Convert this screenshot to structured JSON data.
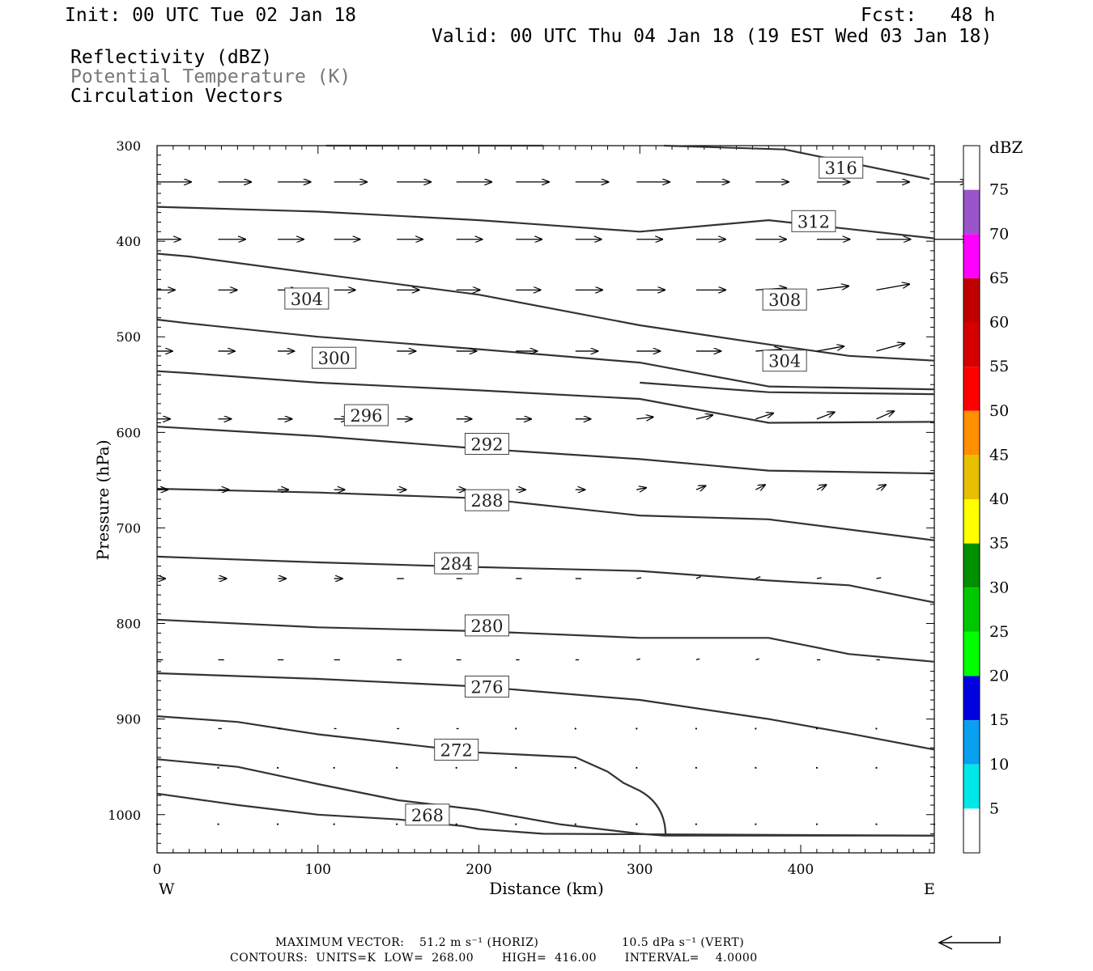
{
  "header": {
    "init": "Init: 00 UTC Tue 02 Jan 18",
    "fcst": "Fcst:   48 h",
    "valid": "Valid: 00 UTC Thu 04 Jan 18 (19 EST Wed 03 Jan 18)",
    "field1": "Reflectivity (dBZ)",
    "field2": "Potential Temperature (K)",
    "field3": "Circulation Vectors"
  },
  "footer": {
    "max_vector_label": "MAXIMUM VECTOR:",
    "horiz": "51.2 m s⁻¹ (HORIZ)",
    "vert": "10.5 dPa s⁻¹ (VERT)",
    "contours": "CONTOURS:  UNITS=K  LOW=  268.00       HIGH=  416.00       INTERVAL=    4.0000"
  },
  "colorbar": {
    "title": "dBZ",
    "labels": [
      "5",
      "10",
      "15",
      "20",
      "25",
      "30",
      "35",
      "40",
      "45",
      "50",
      "55",
      "60",
      "65",
      "70",
      "75"
    ],
    "colors": [
      "#ffffff",
      "#00e8e8",
      "#0aa0f0",
      "#0000e0",
      "#00ff00",
      "#00c800",
      "#009000",
      "#ffff00",
      "#e6bf00",
      "#ff9000",
      "#ff0000",
      "#d60000",
      "#c00000",
      "#ff00ff",
      "#9955c9",
      "#ffffff"
    ]
  },
  "chart_data": {
    "type": "contour",
    "xlabel": "Distance (km)",
    "ylabel": "Pressure (hPa)",
    "x_ticks": [
      "0",
      "100",
      "200",
      "300",
      "400"
    ],
    "y_ticks": [
      "300",
      "400",
      "500",
      "600",
      "700",
      "800",
      "900",
      "1000"
    ],
    "x_end_labels": {
      "left": "W",
      "right": "E"
    },
    "xlim": [
      0,
      483
    ],
    "ylim": [
      1040,
      300
    ],
    "contours": [
      {
        "level": "316",
        "points": [
          [
            105,
            300
          ],
          [
            240,
            300
          ]
        ],
        "label_at": [
          425,
          323
        ]
      },
      {
        "level": "316b",
        "points": [
          [
            315,
            300
          ],
          [
            390,
            304
          ],
          [
            480,
            335
          ]
        ]
      },
      {
        "level": "312",
        "points": [
          [
            0,
            364
          ],
          [
            100,
            369
          ],
          [
            200,
            378
          ],
          [
            300,
            390
          ],
          [
            380,
            378
          ],
          [
            483,
            397
          ]
        ],
        "label_at": [
          408,
          379
        ]
      },
      {
        "level": "308",
        "points": [
          [
            0,
            413
          ],
          [
            20,
            416
          ],
          [
            100,
            434
          ],
          [
            200,
            456
          ],
          [
            300,
            488
          ],
          [
            380,
            508
          ],
          [
            430,
            520
          ],
          [
            483,
            525
          ]
        ],
        "label_at": [
          390,
          461
        ]
      },
      {
        "level": "304",
        "points": [
          [
            0,
            482
          ],
          [
            20,
            486
          ],
          [
            100,
            500
          ],
          [
            200,
            513
          ],
          [
            300,
            527
          ],
          [
            380,
            552
          ],
          [
            483,
            555
          ]
        ],
        "label_at": [
          93,
          460
        ]
      },
      {
        "level": "304b",
        "points": [
          [
            300,
            548
          ],
          [
            380,
            558
          ],
          [
            483,
            560
          ]
        ],
        "label_at": [
          390,
          525
        ]
      },
      {
        "level": "300",
        "points": [
          [
            0,
            536
          ],
          [
            20,
            538
          ],
          [
            100,
            548
          ],
          [
            200,
            556
          ],
          [
            300,
            565
          ],
          [
            380,
            590
          ],
          [
            483,
            589
          ]
        ],
        "label_at": [
          110,
          522
        ]
      },
      {
        "level": "296",
        "points": [
          [
            0,
            594
          ],
          [
            100,
            604
          ],
          [
            200,
            617
          ],
          [
            300,
            628
          ],
          [
            380,
            640
          ],
          [
            483,
            643
          ]
        ],
        "label_at": [
          130,
          582
        ]
      },
      {
        "level": "292",
        "points": [
          [
            0,
            659
          ],
          [
            100,
            663
          ],
          [
            200,
            669
          ],
          [
            300,
            687
          ],
          [
            380,
            691
          ],
          [
            483,
            713
          ]
        ],
        "label_at": [
          205,
          612
        ]
      },
      {
        "level": "288",
        "points": [
          [
            0,
            730
          ],
          [
            100,
            736
          ],
          [
            200,
            741
          ],
          [
            300,
            745
          ],
          [
            380,
            755
          ],
          [
            430,
            760
          ],
          [
            483,
            778
          ]
        ],
        "label_at": [
          205,
          671
        ]
      },
      {
        "level": "284",
        "points": [
          [
            0,
            796
          ],
          [
            100,
            804
          ],
          [
            200,
            808
          ],
          [
            300,
            815
          ],
          [
            380,
            815
          ],
          [
            430,
            832
          ],
          [
            483,
            840
          ]
        ],
        "label_at": [
          186,
          737
        ]
      },
      {
        "level": "280",
        "points": [
          [
            0,
            852
          ],
          [
            100,
            858
          ],
          [
            200,
            866
          ],
          [
            300,
            880
          ],
          [
            380,
            900
          ],
          [
            430,
            915
          ],
          [
            483,
            932
          ]
        ],
        "label_at": [
          205,
          802
        ]
      },
      {
        "level": "276",
        "points": [
          [
            0,
            897
          ],
          [
            50,
            903
          ],
          [
            100,
            916
          ],
          [
            200,
            935
          ],
          [
            260,
            940
          ],
          [
            280,
            955
          ],
          [
            290,
            967
          ],
          [
            300,
            975
          ]
        ],
        "label_at": [
          205,
          866
        ]
      },
      {
        "level": "272",
        "points": [
          [
            0,
            942
          ],
          [
            50,
            950
          ],
          [
            100,
            968
          ],
          [
            150,
            985
          ],
          [
            200,
            995
          ],
          [
            250,
            1010
          ],
          [
            300,
            1020
          ],
          [
            315,
            1022
          ],
          [
            483,
            1022
          ]
        ],
        "label_at": [
          186,
          932
        ]
      },
      {
        "level": "268",
        "points": [
          [
            0,
            978
          ],
          [
            50,
            990
          ],
          [
            100,
            1000
          ],
          [
            150,
            1005
          ],
          [
            190,
            1012
          ],
          [
            200,
            1015
          ],
          [
            240,
            1020
          ],
          [
            483,
            1022
          ]
        ],
        "label_at": [
          168,
          1000
        ]
      }
    ],
    "vectors": [
      {
        "p": 338,
        "x": [
          0,
          38,
          75,
          110,
          149,
          186,
          223,
          260,
          298,
          335,
          372,
          410,
          447,
          483
        ],
        "u": [
          29,
          28,
          28,
          28,
          29,
          30,
          28,
          28,
          28,
          28,
          28,
          28,
          28,
          28
        ],
        "w": [
          0,
          0,
          0,
          0,
          0,
          0,
          0,
          0,
          0,
          0,
          0,
          0,
          0,
          0
        ]
      },
      {
        "p": 398,
        "x": [
          0,
          38,
          75,
          110,
          149,
          186,
          223,
          260,
          298,
          335,
          372,
          410,
          447,
          483
        ],
        "u": [
          20,
          23,
          22,
          22,
          22,
          22,
          22,
          22,
          22,
          25,
          26,
          28,
          29,
          30
        ],
        "w": [
          0,
          0,
          0,
          0,
          0,
          0,
          0,
          0,
          0,
          0,
          0,
          0,
          0,
          0
        ]
      },
      {
        "p": 451,
        "x": [
          0,
          38,
          75,
          110,
          149,
          186,
          223,
          260,
          298,
          335,
          372,
          410,
          447
        ],
        "u": [
          15,
          16,
          17,
          18,
          19,
          20,
          21,
          23,
          24,
          25,
          26,
          27,
          28
        ],
        "w": [
          0,
          0,
          0,
          0,
          0,
          0,
          0,
          0,
          0,
          0,
          2,
          4,
          6
        ]
      },
      {
        "p": 515,
        "x": [
          0,
          38,
          75,
          110,
          149,
          186,
          223,
          260,
          298,
          335,
          372,
          410,
          447
        ],
        "u": [
          13,
          14,
          14,
          15,
          16,
          17,
          18,
          19,
          20,
          21,
          22,
          23,
          24
        ],
        "w": [
          0,
          0,
          0,
          0,
          0,
          0,
          0,
          0,
          0,
          0,
          2,
          5,
          8
        ]
      },
      {
        "p": 586,
        "x": [
          0,
          38,
          75,
          110,
          149,
          186,
          223,
          260,
          298,
          335,
          372,
          410,
          447
        ],
        "u": [
          11,
          11,
          12,
          12,
          13,
          13,
          13,
          13,
          14,
          14,
          15,
          15,
          15
        ],
        "w": [
          0,
          0,
          0,
          0,
          0,
          0,
          0,
          0,
          2,
          4,
          6,
          7,
          8
        ]
      },
      {
        "p": 660,
        "x": [
          0,
          38,
          75,
          110,
          149,
          186,
          223,
          260,
          298,
          335,
          372,
          410,
          447
        ],
        "u": [
          9,
          9,
          9,
          9,
          8,
          8,
          8,
          8,
          8,
          8,
          8,
          8,
          8
        ],
        "w": [
          0,
          0,
          0,
          0,
          0,
          0,
          0,
          0,
          2,
          4,
          5,
          5,
          5
        ]
      },
      {
        "p": 753,
        "x": [
          0,
          38,
          75,
          110,
          149,
          186,
          223,
          260,
          298,
          335,
          372,
          410,
          447
        ],
        "u": [
          7,
          7,
          7,
          7,
          6,
          5,
          5,
          5,
          4,
          4,
          4,
          4,
          4
        ],
        "w": [
          0,
          0,
          0,
          0,
          0,
          0,
          0,
          0,
          1,
          2,
          2,
          1,
          1
        ]
      },
      {
        "p": 838,
        "x": [
          0,
          38,
          75,
          110,
          149,
          186,
          223,
          260,
          298,
          335,
          372,
          410,
          447
        ],
        "u": [
          5,
          5,
          5,
          5,
          4,
          4,
          3,
          3,
          3,
          3,
          3,
          3,
          3
        ],
        "w": [
          0,
          0,
          0,
          0,
          0,
          0,
          0,
          0,
          1,
          1,
          1,
          0,
          0
        ]
      },
      {
        "p": 910,
        "x": [
          0,
          38,
          75,
          110,
          149,
          186,
          223,
          260,
          298,
          335,
          372,
          410,
          447
        ],
        "u": [
          3,
          3,
          3,
          2,
          2,
          2,
          1,
          1,
          1,
          1,
          1,
          1,
          1
        ],
        "w": [
          0,
          0,
          0,
          0,
          0,
          0,
          0,
          0,
          0,
          0,
          0,
          0,
          0
        ]
      },
      {
        "p": 951,
        "x": [
          0,
          38,
          75,
          110,
          149,
          186,
          223,
          260,
          298,
          335,
          372,
          410,
          447,
          483
        ],
        "u": [
          1,
          1,
          1,
          1,
          1,
          1,
          1,
          1,
          1,
          1,
          1,
          1,
          1,
          1
        ],
        "w": [
          0,
          0,
          0,
          0,
          0,
          0,
          0,
          0,
          0,
          0,
          0,
          0,
          0,
          0
        ]
      },
      {
        "p": 1010,
        "x": [
          0,
          38,
          75,
          110,
          149,
          186,
          223,
          260,
          298,
          335,
          372,
          410,
          447,
          483
        ],
        "u": [
          1,
          1,
          1,
          1,
          1,
          1,
          1,
          1,
          1,
          1,
          1,
          1,
          1,
          1
        ],
        "w": [
          0,
          0,
          0,
          0,
          0,
          0,
          0,
          0,
          0,
          0,
          0,
          0,
          0,
          0
        ]
      }
    ]
  }
}
